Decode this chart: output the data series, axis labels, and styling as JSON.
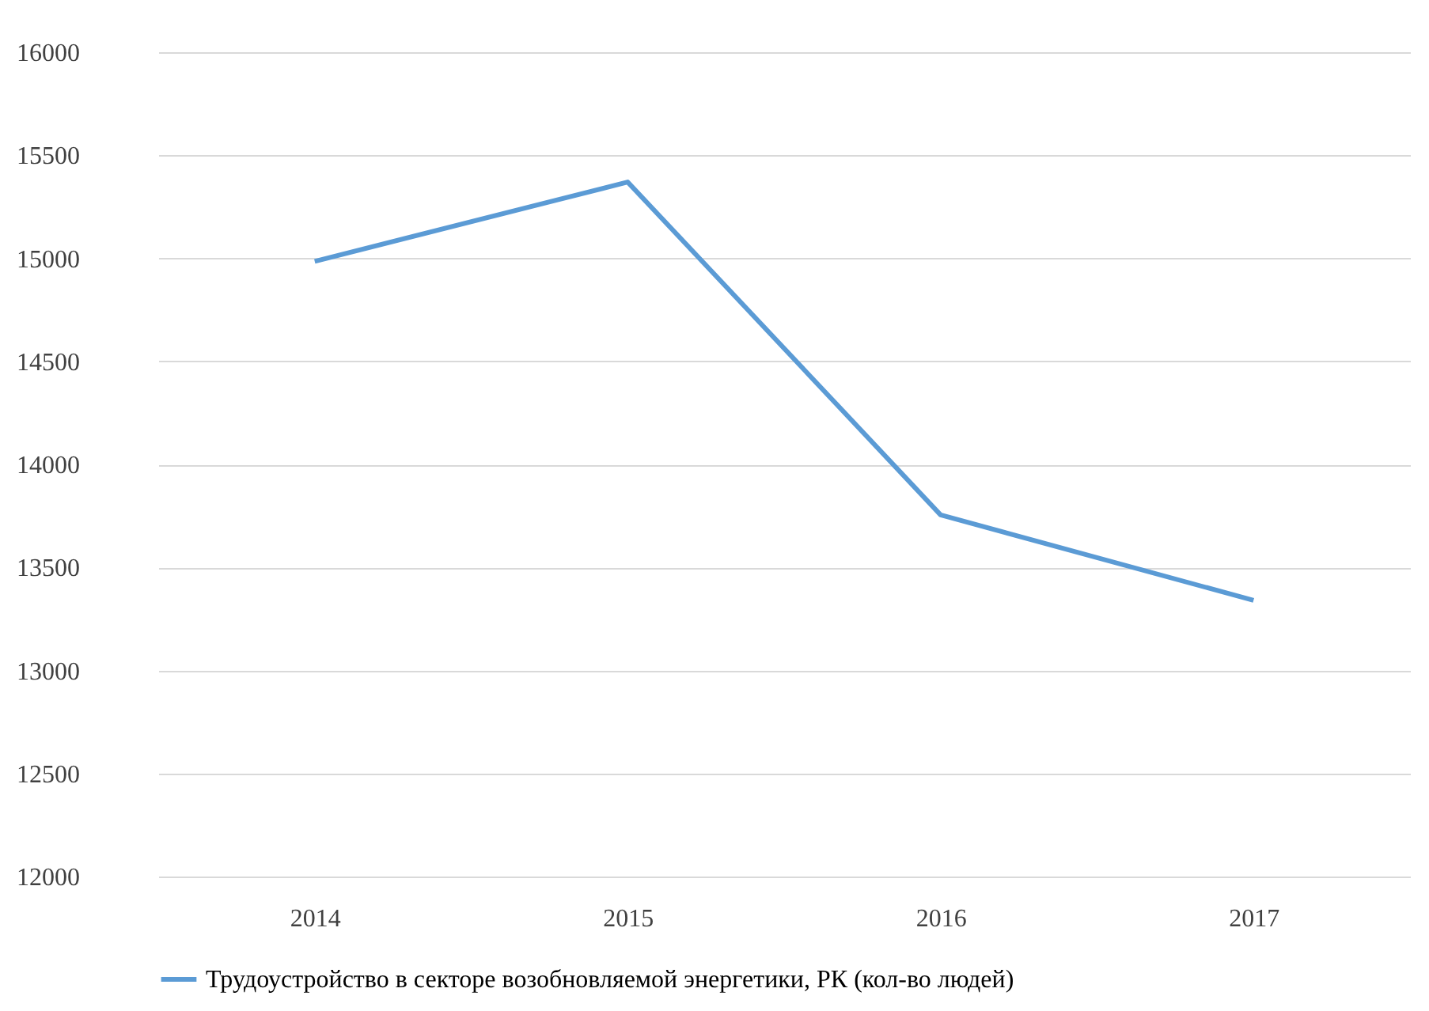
{
  "chart_data": {
    "type": "line",
    "categories": [
      "2014",
      "2015",
      "2016",
      "2017"
    ],
    "series": [
      {
        "name": "Трудоустройство в секторе возобновляемой энергетики, РК (кол-во людей)",
        "color": "#5b9bd5",
        "values": [
          14985,
          15370,
          13755,
          13340
        ]
      }
    ],
    "ylim": [
      12000,
      16000
    ],
    "yticks": [
      12000,
      12500,
      13000,
      13500,
      14000,
      14500,
      15000,
      15500,
      16000
    ],
    "grid": "y",
    "legend": "bottom",
    "marker": "none",
    "line_style": "solid"
  }
}
